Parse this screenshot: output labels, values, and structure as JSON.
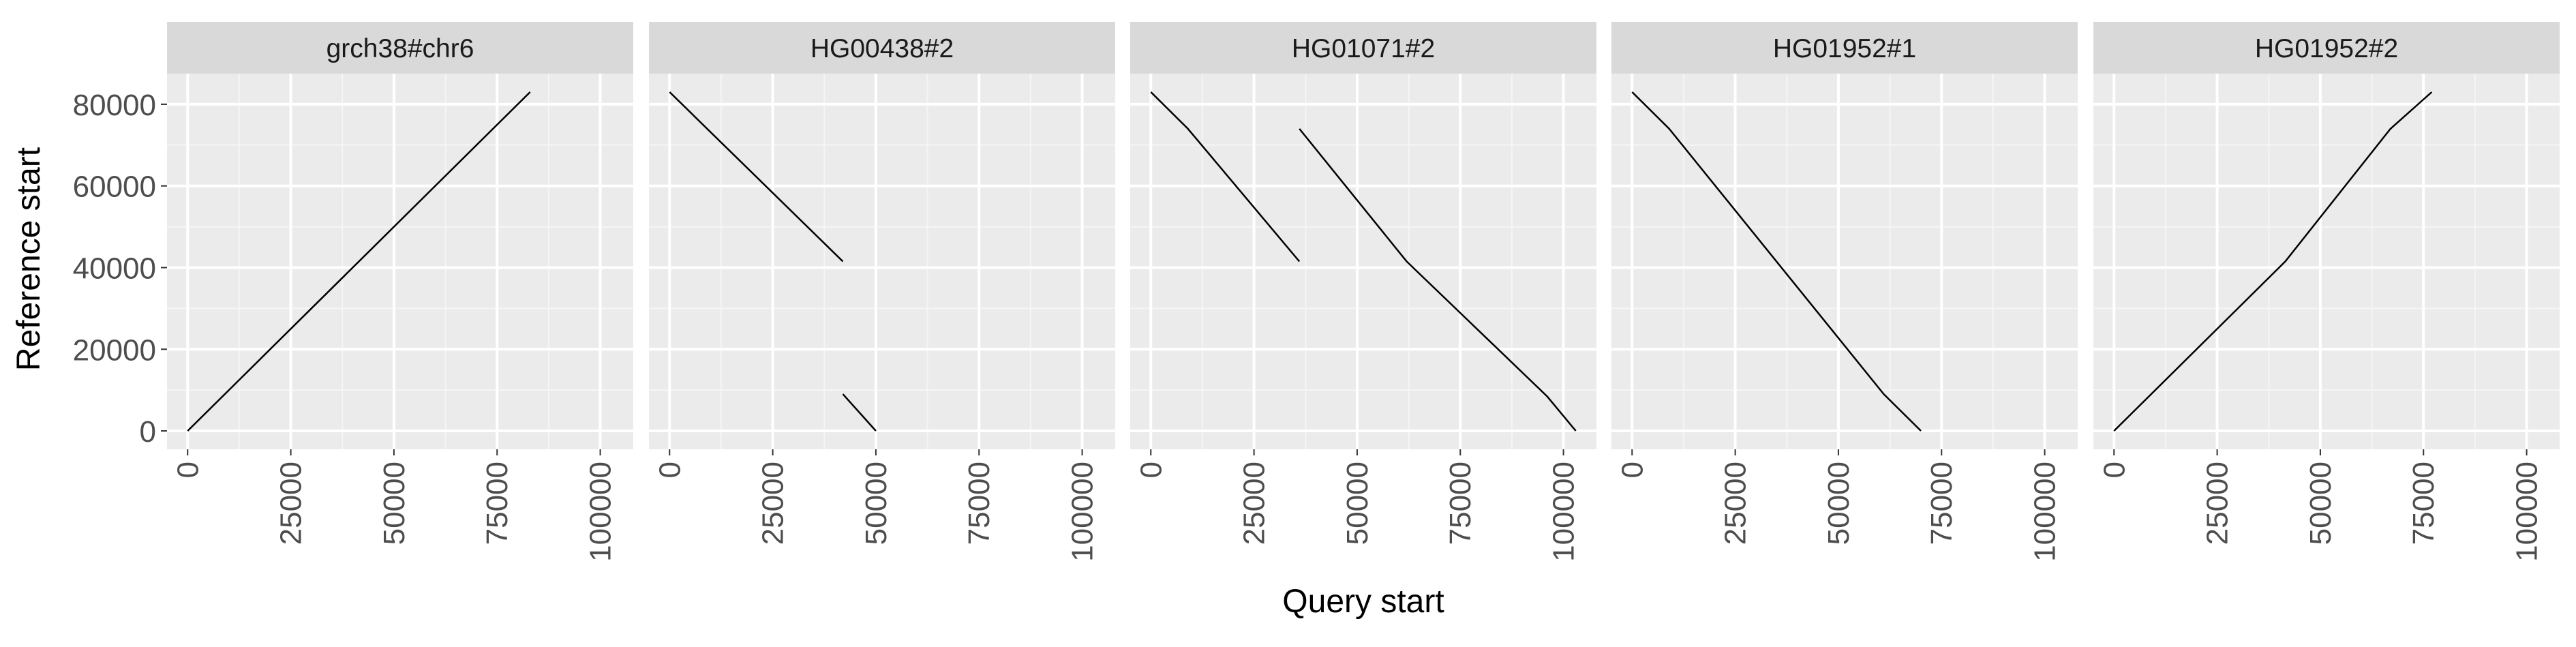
{
  "chart_data": {
    "type": "line",
    "xlabel": "Query start",
    "ylabel": "Reference start",
    "xlim": [
      -5000,
      108000
    ],
    "ylim": [
      -4500,
      87500
    ],
    "x_ticks": [
      0,
      25000,
      50000,
      75000,
      100000
    ],
    "x_tick_labels": [
      "0",
      "25000",
      "50000",
      "75000",
      "100000"
    ],
    "y_ticks": [
      0,
      20000,
      40000,
      60000,
      80000
    ],
    "y_tick_labels": [
      "0",
      "20000",
      "40000",
      "60000",
      "80000"
    ],
    "grid": true,
    "panels": [
      {
        "title": "grch38#chr6",
        "segments": [
          [
            [
              0,
              0
            ],
            [
              83000,
              83000
            ]
          ]
        ]
      },
      {
        "title": "HG00438#2",
        "segments": [
          [
            [
              0,
              83000
            ],
            [
              42000,
              41500
            ]
          ],
          [
            [
              42000,
              9000
            ],
            [
              50000,
              0
            ]
          ]
        ]
      },
      {
        "title": "HG01071#2",
        "segments": [
          [
            [
              0,
              83000
            ],
            [
              9000,
              74000
            ],
            [
              36000,
              41500
            ]
          ],
          [
            [
              36000,
              74000
            ],
            [
              62000,
              41500
            ],
            [
              96000,
              8500
            ],
            [
              103000,
              0
            ]
          ]
        ]
      },
      {
        "title": "HG01952#1",
        "segments": [
          [
            [
              0,
              83000
            ],
            [
              9000,
              74000
            ],
            [
              61000,
              9000
            ],
            [
              70000,
              0
            ]
          ]
        ]
      },
      {
        "title": "HG01952#2",
        "segments": [
          [
            [
              0,
              0
            ],
            [
              41500,
              41500
            ],
            [
              67000,
              74000
            ],
            [
              77000,
              83000
            ]
          ]
        ]
      }
    ]
  }
}
